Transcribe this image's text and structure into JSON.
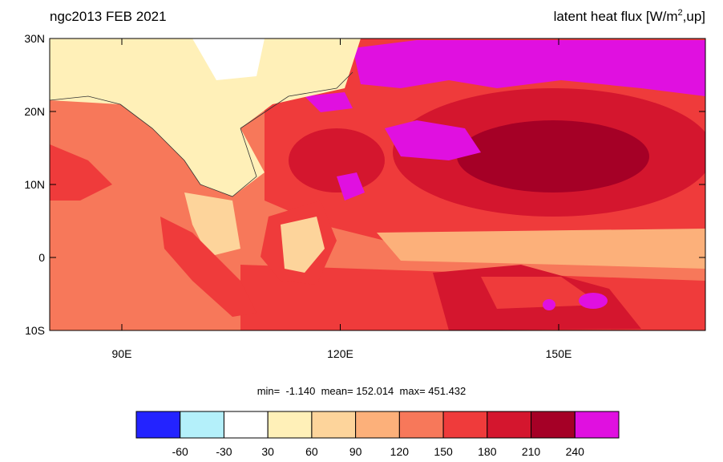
{
  "title_left": "ngc2013 FEB 2021",
  "title_right": {
    "text": "latent heat flux [W/m",
    "superscript": "2",
    "text_after": ",up]"
  },
  "map": {
    "lat_ticks": [
      {
        "value": 30,
        "label": "30N"
      },
      {
        "value": 20,
        "label": "20N"
      },
      {
        "value": 10,
        "label": "10N"
      },
      {
        "value": 0,
        "label": "0"
      },
      {
        "value": -10,
        "label": "10S"
      }
    ],
    "lon_ticks": [
      {
        "value": 90,
        "label": "90E"
      },
      {
        "value": 120,
        "label": "120E"
      },
      {
        "value": 150,
        "label": "150E"
      }
    ]
  },
  "stats": "min=  -1.140  mean= 152.014  max= 451.432",
  "colorbar": {
    "colors": [
      "#2323ff",
      "#b4f0fa",
      "#ffffff",
      "#fff0b8",
      "#fdd49b",
      "#fcb07a",
      "#f7785a",
      "#ef3b3b",
      "#d4162e",
      "#a50026",
      "#e010e0"
    ],
    "levels": [
      -60,
      -30,
      30,
      60,
      90,
      120,
      150,
      180,
      210,
      240
    ]
  }
}
